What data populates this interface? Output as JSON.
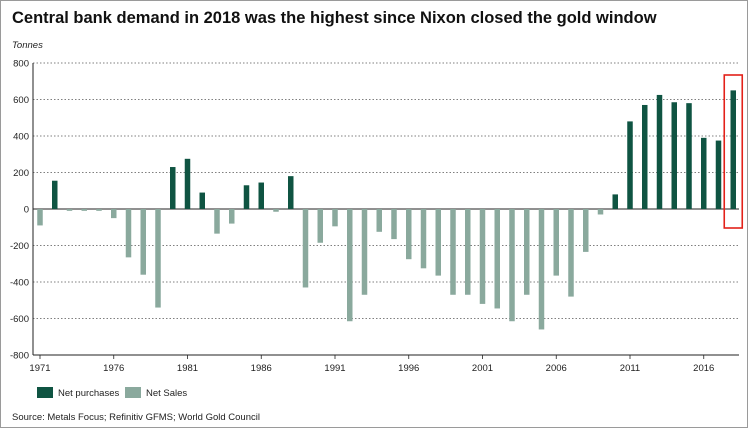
{
  "chart_data": {
    "type": "bar",
    "title": "Central bank demand in 2018 was the highest since Nixon closed the gold window",
    "ylabel": "Tonnes",
    "source": "Source: Metals Focus; Refinitiv GFMS; World Gold Council",
    "ylim": [
      -800,
      800
    ],
    "yticks": [
      800,
      600,
      400,
      200,
      0,
      -200,
      -400,
      -600,
      -800
    ],
    "xticks": [
      1971,
      1976,
      1981,
      1986,
      1991,
      1996,
      2001,
      2006,
      2011,
      2016
    ],
    "grid": true,
    "legend_position": "bottom-left",
    "highlight_year": 2018,
    "series": [
      {
        "name": "Net purchases",
        "color": "#0f5442"
      },
      {
        "name": "Net Sales",
        "color": "#8aa99d"
      }
    ],
    "x": [
      1971,
      1972,
      1973,
      1974,
      1975,
      1976,
      1977,
      1978,
      1979,
      1980,
      1981,
      1982,
      1983,
      1984,
      1985,
      1986,
      1987,
      1988,
      1989,
      1990,
      1991,
      1992,
      1993,
      1994,
      1995,
      1996,
      1997,
      1998,
      1999,
      2000,
      2001,
      2002,
      2003,
      2004,
      2005,
      2006,
      2007,
      2008,
      2009,
      2010,
      2011,
      2012,
      2013,
      2014,
      2015,
      2016,
      2017,
      2018
    ],
    "values": [
      -90,
      155,
      -10,
      -10,
      -10,
      -50,
      -265,
      -360,
      -540,
      230,
      275,
      90,
      -135,
      -80,
      130,
      145,
      -15,
      180,
      -430,
      -185,
      -95,
      -615,
      -470,
      -125,
      -165,
      -275,
      -325,
      -365,
      -470,
      -470,
      -520,
      -545,
      -615,
      -470,
      -660,
      -365,
      -480,
      -235,
      -30,
      80,
      480,
      570,
      625,
      585,
      580,
      390,
      375,
      650
    ]
  },
  "legend": {
    "purchases_label": "Net purchases",
    "sales_label": "Net Sales"
  }
}
